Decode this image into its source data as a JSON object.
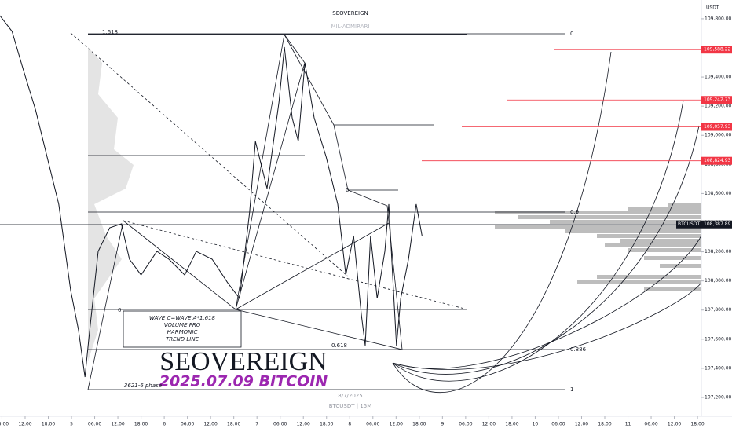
{
  "chart_data": {
    "type": "line",
    "title": "SEOVEREIGN",
    "subtitle": "MIL-ADMIRARI",
    "currency": "USDT",
    "symbol_footer": "BTCUSDT | 15M",
    "date_footer": "8/7/2025",
    "series": [
      {
        "name": "BTCUSDT",
        "color": "#131722",
        "x": [
          -18.5,
          -15.4,
          -12.4,
          -9.3,
          -6.3,
          -3.3,
          -0.2,
          1.8,
          3.5,
          4.5,
          6.9,
          9.9,
          12.9,
          15.0,
          18.0,
          22.1,
          25.2,
          29.3,
          32.3,
          36.4,
          40.4,
          43.5,
          46.1,
          47.6,
          50.6,
          53.7,
          55.1,
          57.1,
          58.7,
          60.4,
          62.8,
          65.9,
          68.9,
          71.0,
          73.0,
          75.0,
          76.0,
          77.4,
          79.1,
          81.1,
          82.1,
          84.1,
          85.2,
          87.2,
          89.2,
          90.7
        ],
        "values": [
          109821,
          109714,
          109444,
          109174,
          108851,
          108527,
          107934,
          107664,
          107340,
          107610,
          108203,
          108365,
          108392,
          108149,
          108041,
          108203,
          108149,
          108041,
          108203,
          108149,
          107988,
          107880,
          108473,
          108958,
          108635,
          109228,
          109606,
          109120,
          108958,
          109498,
          109120,
          108851,
          108527,
          108041,
          108311,
          107772,
          107556,
          108311,
          107880,
          108203,
          108527,
          107556,
          107880,
          108149,
          108527,
          108311
        ]
      }
    ],
    "price_labels": [
      {
        "value": 109588.22,
        "label": "109,588.22",
        "color": "#f23645"
      },
      {
        "value": 109242.73,
        "label": "109,242.73",
        "color": "#f23645"
      },
      {
        "value": 109057.93,
        "label": "109,057.93",
        "color": "#f23645"
      },
      {
        "value": 108824.93,
        "label": "108,824.93",
        "color": "#f23645"
      },
      {
        "value": 108387.89,
        "label": "108,387.89",
        "color": "#131722",
        "name": "BTCUSDT"
      }
    ],
    "xlim": [
      -18.5,
      163
    ],
    "xticks": [
      {
        "value": -18,
        "label": "06:00"
      },
      {
        "value": -12,
        "label": "12:00"
      },
      {
        "value": -6,
        "label": "18:00"
      },
      {
        "value": 0,
        "label": "5"
      },
      {
        "value": 6,
        "label": "06:00"
      },
      {
        "value": 12,
        "label": "12:00"
      },
      {
        "value": 18,
        "label": "18:00"
      },
      {
        "value": 24,
        "label": "6"
      },
      {
        "value": 30,
        "label": "06:00"
      },
      {
        "value": 36,
        "label": "12:00"
      },
      {
        "value": 42,
        "label": "18:00"
      },
      {
        "value": 48,
        "label": "7"
      },
      {
        "value": 54,
        "label": "06:00"
      },
      {
        "value": 60,
        "label": "12:00"
      },
      {
        "value": 66,
        "label": "18:00"
      },
      {
        "value": 72,
        "label": "8"
      },
      {
        "value": 78,
        "label": "06:00"
      },
      {
        "value": 84,
        "label": "12:00"
      },
      {
        "value": 90,
        "label": "18:00"
      },
      {
        "value": 96,
        "label": "9"
      },
      {
        "value": 102,
        "label": "06:00"
      },
      {
        "value": 108,
        "label": "12:00"
      },
      {
        "value": 114,
        "label": "18:00"
      },
      {
        "value": 120,
        "label": "10"
      },
      {
        "value": 126,
        "label": "06:00"
      },
      {
        "value": 132,
        "label": "12:00"
      },
      {
        "value": 138,
        "label": "18:00"
      },
      {
        "value": 144,
        "label": "11"
      },
      {
        "value": 150,
        "label": "06:00"
      },
      {
        "value": 156,
        "label": "12:00"
      },
      {
        "value": 162,
        "label": "18:00"
      }
    ],
    "ylim": [
      107146,
      109929
    ],
    "yticks": [
      {
        "value": 107200,
        "label": "107,200.00"
      },
      {
        "value": 107400,
        "label": "107,400.00"
      },
      {
        "value": 107600,
        "label": "107,600.00"
      },
      {
        "value": 107800,
        "label": "107,800.00"
      },
      {
        "value": 108000,
        "label": "108,000.00"
      },
      {
        "value": 108200,
        "label": "108,200.00"
      },
      {
        "value": 108400,
        "label": "108,400.00"
      },
      {
        "value": 108600,
        "label": "108,600.00"
      },
      {
        "value": 108800,
        "label": "108,800.00"
      },
      {
        "value": 109000,
        "label": "109,000.00"
      },
      {
        "value": 109200,
        "label": "109,200.00"
      },
      {
        "value": 109400,
        "label": "109,400.00"
      },
      {
        "value": 109600,
        "label": "109,600.00"
      },
      {
        "value": 109800,
        "label": "109,800.00"
      }
    ],
    "grid": false,
    "annotations": [
      "1.618",
      "0",
      "0.9",
      "0.618",
      "0.886",
      "1",
      "0",
      "0"
    ],
    "info_box": [
      "WAVE C=WAVE A*1.618",
      "VOLUME PRO",
      "HARMONIC",
      "TREND LINE"
    ],
    "watermark": "SEOVEREIGN",
    "date_caption": "2025.07.09 BITCOIN",
    "phase": "3621-6 phase"
  }
}
